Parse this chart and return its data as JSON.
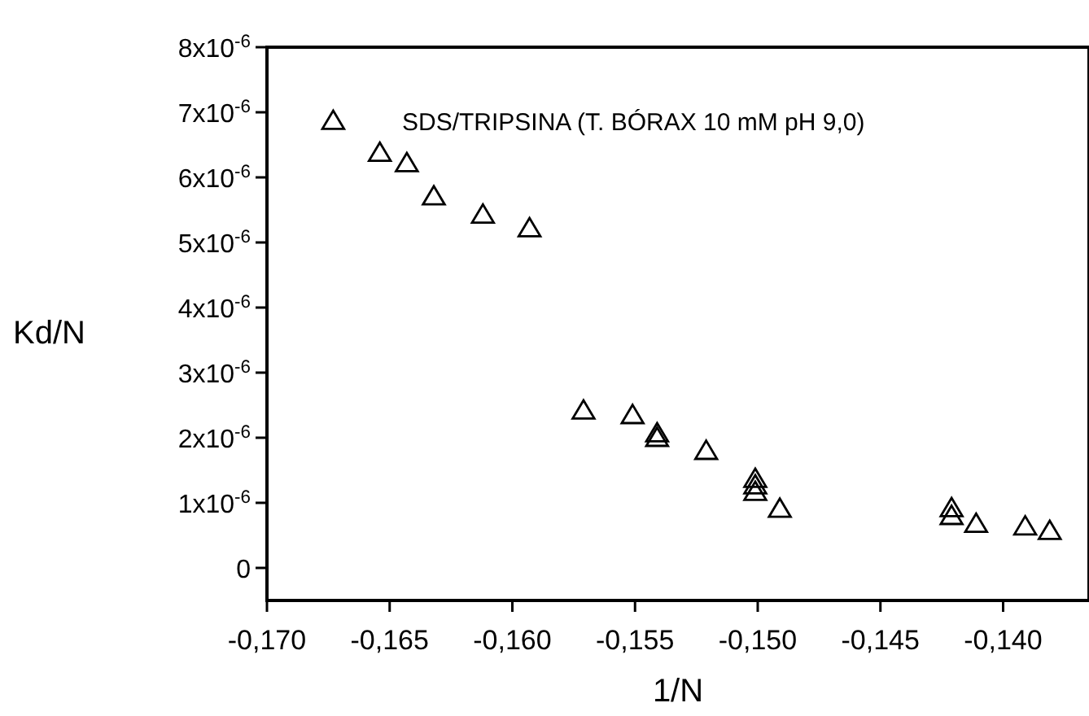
{
  "chart_data": {
    "type": "scatter",
    "xlabel": "1/N",
    "ylabel": "Kd/N",
    "annotations": [
      "SDS/TRIPSINA (T. BÓRAX 10 mM pH 9,0)"
    ],
    "x": [
      -0.1673,
      -0.1654,
      -0.1643,
      -0.1632,
      -0.1612,
      -0.1593,
      -0.1571,
      -0.1551,
      -0.1541,
      -0.1541,
      -0.1521,
      -0.1501,
      -0.1501,
      -0.1501,
      -0.1491,
      -0.1421,
      -0.1421,
      -0.1411,
      -0.1391,
      -0.1381
    ],
    "series": [
      {
        "color": "#000000",
        "values": [
          6.85e-06,
          6.36e-06,
          6.2e-06,
          5.69e-06,
          5.41e-06,
          5.2e-06,
          2.4e-06,
          2.33e-06,
          2.05e-06,
          1.98e-06,
          1.78e-06,
          1.35e-06,
          1.25e-06,
          1.15e-06,
          8.9e-07,
          9e-07,
          7.8e-07,
          6.6e-07,
          6.2e-07,
          5.5e-07
        ]
      }
    ],
    "marker": "triangle",
    "xlim": [
      -0.17,
      -0.1365
    ],
    "ylim": [
      -5e-07,
      8e-06
    ],
    "xticks": [
      {
        "value": -0.17,
        "label": "-0,170"
      },
      {
        "value": -0.165,
        "label": "-0,165"
      },
      {
        "value": -0.16,
        "label": "-0,160"
      },
      {
        "value": -0.155,
        "label": "-0,155"
      },
      {
        "value": -0.15,
        "label": "-0,150"
      },
      {
        "value": -0.145,
        "label": "-0,145"
      },
      {
        "value": -0.14,
        "label": "-0,140"
      }
    ],
    "yticks": [
      {
        "value": 0,
        "label": "0"
      },
      {
        "value": 1e-06,
        "label": "1x10$^{-6}$"
      },
      {
        "value": 2e-06,
        "label": "2x10$^{-6}$"
      },
      {
        "value": 3e-06,
        "label": "3x10$^{-6}$"
      },
      {
        "value": 4e-06,
        "label": "4x10$^{-6}$"
      },
      {
        "value": 5e-06,
        "label": "5x10$^{-6}$"
      },
      {
        "value": 6e-06,
        "label": "6x10$^{-6}$"
      },
      {
        "value": 7e-06,
        "label": "7x10$^{-6}$"
      },
      {
        "value": 8e-06,
        "label": "8x10$^{-6}$"
      }
    ]
  }
}
